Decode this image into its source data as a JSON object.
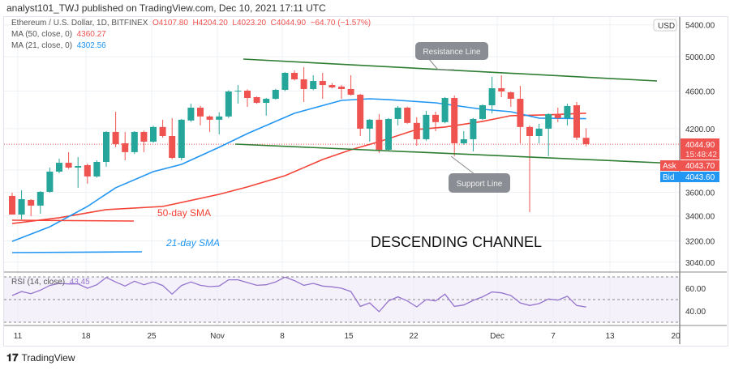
{
  "header": {
    "publisher": "analyst101_TWJ published on TradingView.com, Dec 10, 2021 17:11 UTC"
  },
  "legend": {
    "symbol": "Ethereum / U.S. Dollar, 1D, BITFINEX",
    "open": "O4107.80",
    "high": "H4204.20",
    "low": "L4023.20",
    "close": "C4044.90",
    "change": "−64.70 (−1.57%)",
    "ma50_label": "MA (50, close, 0)",
    "ma50_value": "4360.27",
    "ma21_label": "MA (21, close, 0)",
    "ma21_value": "4302.56",
    "rsi_label": "RSI (14, close)",
    "rsi_value": "43.45"
  },
  "price_axis": {
    "currency": "USD",
    "ticks": [
      "5400.00",
      "5000.00",
      "4600.00",
      "4200.00",
      "3600.00",
      "3400.00",
      "3200.00",
      "3040.00"
    ],
    "last_price": "4044.90",
    "countdown": "15:48:42",
    "ask_label": "Ask",
    "ask": "4043.70",
    "bid_label": "Bid",
    "bid": "4043.60"
  },
  "rsi_axis": {
    "ticks": [
      "60.00",
      "40.00"
    ]
  },
  "time_axis": {
    "ticks": [
      "11",
      "18",
      "25",
      "Nov",
      "8",
      "15",
      "22",
      "Dec",
      "7",
      "13",
      "20"
    ]
  },
  "annotations": {
    "resistance": "Resistance Line",
    "support": "Support Line",
    "sma50": "50-day SMA",
    "sma21": "21-day SMA",
    "title": "DESCENDING CHANNEL"
  },
  "footer": {
    "brand": "TradingView"
  },
  "colors": {
    "up": "#26a69a",
    "down": "#ef5350",
    "ma50": "#f44336",
    "ma21": "#2196f3",
    "rsi": "#9575cd",
    "channel": "#2e7d32"
  },
  "chart_data": {
    "type": "candlestick",
    "scale": "log",
    "start_date": "2021-10-10",
    "candles": [
      [
        3569,
        3597,
        3411,
        3411
      ],
      [
        3411,
        3618,
        3371,
        3541
      ],
      [
        3534,
        3541,
        3398,
        3486
      ],
      [
        3486,
        3611,
        3418,
        3604
      ],
      [
        3604,
        3822,
        3597,
        3785
      ],
      [
        3785,
        3906,
        3770,
        3867
      ],
      [
        3867,
        3968,
        3810,
        3822
      ],
      [
        3822,
        3921,
        3640,
        3837
      ],
      [
        3845,
        3860,
        3676,
        3741
      ],
      [
        3741,
        3890,
        3730,
        3875
      ],
      [
        3875,
        4175,
        3830,
        4167
      ],
      [
        4167,
        4376,
        4015,
        4046
      ],
      [
        4054,
        4167,
        3890,
        3968
      ],
      [
        3968,
        4175,
        3950,
        4167
      ],
      [
        4167,
        4180,
        3968,
        4070
      ],
      [
        4070,
        4230,
        4060,
        4217
      ],
      [
        4217,
        4292,
        4110,
        4126
      ],
      [
        4126,
        4309,
        3900,
        3913
      ],
      [
        3913,
        4300,
        3890,
        4292
      ],
      [
        4284,
        4463,
        4270,
        4419
      ],
      [
        4419,
        4440,
        4233,
        4326
      ],
      [
        4326,
        4335,
        4167,
        4292
      ],
      [
        4292,
        4370,
        4143,
        4326
      ],
      [
        4326,
        4610,
        4310,
        4596
      ],
      [
        4596,
        4668,
        4463,
        4605
      ],
      [
        4605,
        4620,
        4428,
        4524
      ],
      [
        4533,
        4540,
        4460,
        4471
      ],
      [
        4471,
        4525,
        4334,
        4515
      ],
      [
        4515,
        4625,
        4505,
        4614
      ],
      [
        4614,
        4815,
        4600,
        4808
      ],
      [
        4808,
        4836,
        4720,
        4733
      ],
      [
        4733,
        4874,
        4480,
        4623
      ],
      [
        4623,
        4780,
        4610,
        4714
      ],
      [
        4714,
        4808,
        4515,
        4668
      ],
      [
        4668,
        4690,
        4630,
        4641
      ],
      [
        4650,
        4670,
        4515,
        4623
      ],
      [
        4623,
        4780,
        4550,
        4560
      ],
      [
        4560,
        4570,
        4126,
        4200
      ],
      [
        4200,
        4300,
        4070,
        4292
      ],
      [
        4292,
        4351,
        3960,
        3991
      ],
      [
        3991,
        4310,
        3975,
        4300
      ],
      [
        4300,
        4437,
        4233,
        4419
      ],
      [
        4419,
        4430,
        4250,
        4259
      ],
      [
        4259,
        4317,
        4030,
        4094
      ],
      [
        4094,
        4385,
        4080,
        4343
      ],
      [
        4343,
        4376,
        4175,
        4267
      ],
      [
        4267,
        4535,
        4255,
        4524
      ],
      [
        4524,
        4551,
        3929,
        4054
      ],
      [
        4054,
        4175,
        4040,
        4094
      ],
      [
        4094,
        4310,
        3975,
        4300
      ],
      [
        4300,
        4455,
        4290,
        4445
      ],
      [
        4445,
        4761,
        4360,
        4632
      ],
      [
        4632,
        4780,
        4533,
        4596
      ],
      [
        4587,
        4595,
        4428,
        4515
      ],
      [
        4515,
        4659,
        4054,
        4217
      ],
      [
        4217,
        4233,
        3431,
        4126
      ],
      [
        4126,
        4250,
        4054,
        4200
      ],
      [
        4200,
        4360,
        3929,
        4351
      ],
      [
        4351,
        4419,
        4267,
        4309
      ],
      [
        4309,
        4463,
        4233,
        4437
      ],
      [
        4445,
        4480,
        4086,
        4110
      ],
      [
        4107.8,
        4204.2,
        4023.2,
        4044.9
      ]
    ],
    "candle_fields": [
      "open",
      "high",
      "low",
      "close"
    ],
    "ma21": [
      [
        0,
        3197
      ],
      [
        4,
        3312
      ],
      [
        8,
        3479
      ],
      [
        11,
        3640
      ],
      [
        15,
        3785
      ],
      [
        18,
        3852
      ],
      [
        22,
        4015
      ],
      [
        25,
        4150
      ],
      [
        30,
        4360
      ],
      [
        35,
        4498
      ],
      [
        38,
        4515
      ],
      [
        40,
        4506
      ],
      [
        45,
        4471
      ],
      [
        50,
        4402
      ],
      [
        53,
        4376
      ],
      [
        56,
        4309
      ],
      [
        61,
        4302.56
      ]
    ],
    "ma50": [
      [
        0,
        3338
      ],
      [
        5,
        3385
      ],
      [
        10,
        3452
      ],
      [
        16,
        3479
      ],
      [
        22,
        3583
      ],
      [
        25,
        3647
      ],
      [
        29,
        3748
      ],
      [
        33,
        3898
      ],
      [
        36,
        3991
      ],
      [
        39,
        4070
      ],
      [
        43,
        4192
      ],
      [
        46,
        4217
      ],
      [
        50,
        4275
      ],
      [
        53,
        4334
      ],
      [
        57,
        4343
      ],
      [
        61,
        4360.27
      ]
    ],
    "rsi": [
      53.6,
      57.1,
      55.2,
      58.3,
      62.4,
      64.3,
      63.8,
      63.8,
      60,
      63.1,
      69.5,
      65.5,
      61.9,
      66.2,
      63.1,
      65.5,
      62.4,
      54.8,
      62.4,
      65.5,
      62.6,
      61.4,
      61.9,
      67.4,
      67.4,
      65,
      62.6,
      63.1,
      65.5,
      69.8,
      66.7,
      62.6,
      64.3,
      61.9,
      61.2,
      60,
      57.1,
      44,
      47.1,
      39.3,
      48.8,
      52.4,
      48.8,
      43.6,
      50,
      48.8,
      54.8,
      44,
      45.2,
      49.3,
      52.4,
      56.7,
      55.9,
      53.6,
      47.1,
      44.8,
      46.4,
      50.5,
      49.5,
      52.9,
      44.8,
      43.45
    ],
    "rsi_levels": [
      70,
      50,
      30
    ]
  }
}
